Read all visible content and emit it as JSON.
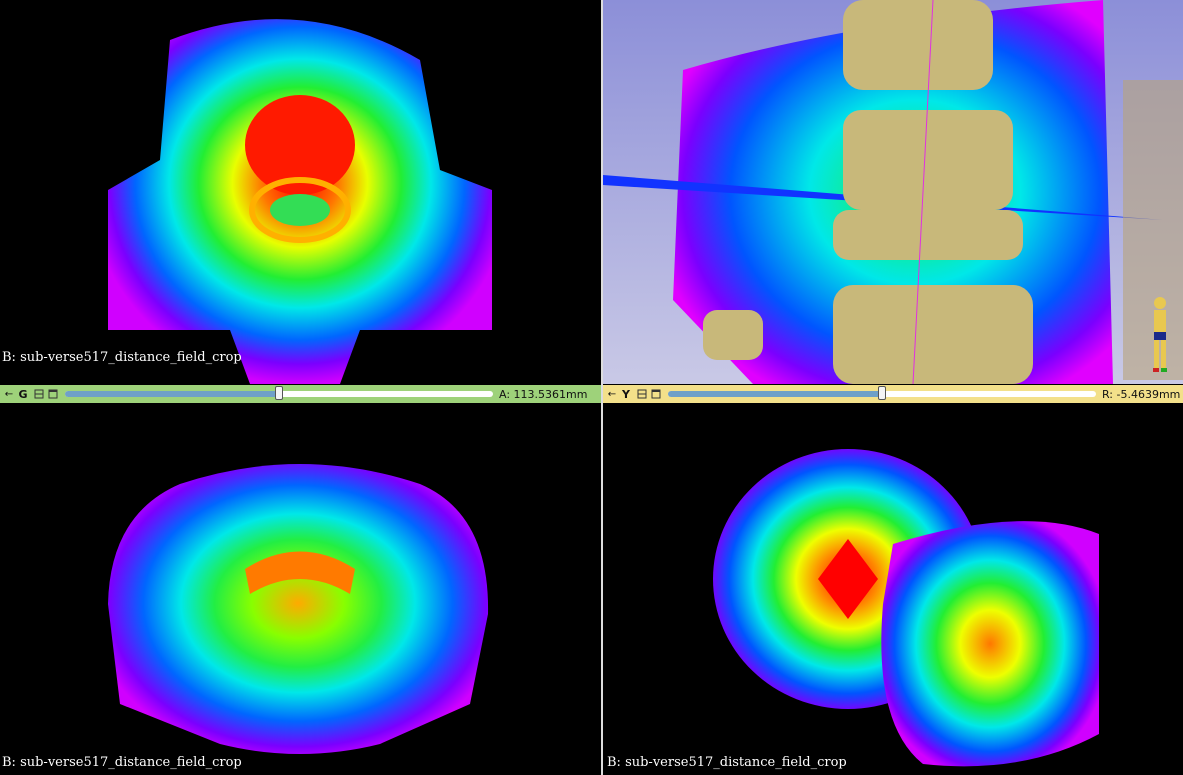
{
  "colors": {
    "red_bar": "#e0e080",
    "green_bar": "#9ed27a",
    "yellow_bar": "#f3e08a",
    "slider_track": "#6fa0c8"
  },
  "views": {
    "red": {
      "label": "B: sub-verse517_distance_field_crop"
    },
    "three_d": {
      "orientation_icon": "human-figure-icon"
    },
    "green": {
      "label": "B: sub-verse517_distance_field_crop",
      "letter": "G",
      "offset": "A: 113.5361mm",
      "slider_value": 0.5
    },
    "yellow": {
      "label": "B: sub-verse517_distance_field_crop",
      "letter": "Y",
      "offset": "R: -5.4639mm",
      "slider_value": 0.5
    }
  }
}
